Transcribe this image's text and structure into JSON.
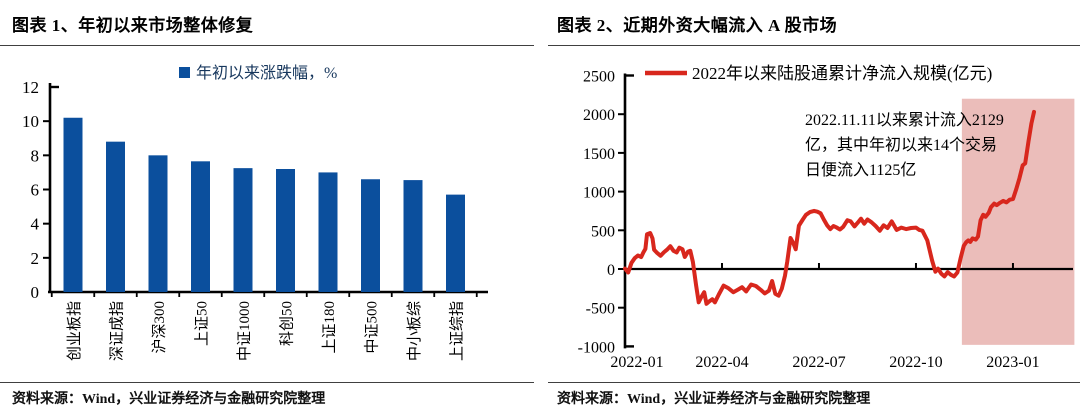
{
  "panels": [
    {
      "title": "图表 1、年初以来市场整体修复",
      "source": "资料来源：Wind，兴业证券经济与金融研究院整理"
    },
    {
      "title": "图表 2、近期外资大幅流入 A 股市场",
      "source": "资料来源：Wind，兴业证券经济与金融研究院整理"
    }
  ],
  "chart_data": [
    {
      "type": "bar",
      "title": "图表 1、年初以来市场整体修复",
      "legend": "年初以来涨跌幅，%",
      "categories": [
        "创业板指",
        "深证成指",
        "沪深300",
        "上证50",
        "中证1000",
        "科创50",
        "上证180",
        "中证500",
        "中小板综",
        "上证综指"
      ],
      "values": [
        10.2,
        8.8,
        8.0,
        7.65,
        7.25,
        7.2,
        7.0,
        6.6,
        6.55,
        5.7
      ],
      "ylim": [
        0,
        12
      ],
      "yticks": [
        0,
        2,
        4,
        6,
        8,
        10,
        12
      ],
      "grid": false,
      "legend_position": "top",
      "bar_color": "#0B4F9D",
      "legend_text_color": "#17375D",
      "axis_color": "#000000"
    },
    {
      "type": "line",
      "title": "图表 2、近期外资大幅流入 A 股市场",
      "legend": "2022年以来陆股通累计净流入规模(亿元)",
      "line_color": "#D8271D",
      "axis_color": "#000000",
      "ylim": [
        -1000,
        2500
      ],
      "yticks": [
        -1000,
        -500,
        0,
        500,
        1000,
        1500,
        2000,
        2500
      ],
      "xlim_months": [
        0,
        13.9
      ],
      "xticks": [
        {
          "month": 0,
          "label": "2022-01"
        },
        {
          "month": 3,
          "label": "2022-04"
        },
        {
          "month": 6,
          "label": "2022-07"
        },
        {
          "month": 9,
          "label": "2022-10"
        },
        {
          "month": 12,
          "label": "2023-01"
        }
      ],
      "highlight": {
        "from_month": 10.42,
        "to_month": 13.9,
        "value_top": 2200,
        "value_bottom": -980,
        "color": "#EBBDBA"
      },
      "annotation": {
        "lines": [
          "2022.11.11以来累计流入2129",
          "亿，其中年初以来14个交易",
          "日便流入1125亿"
        ],
        "color": "#000000"
      },
      "points": [
        [
          0,
          5
        ],
        [
          0.1,
          -45
        ],
        [
          0.2,
          80
        ],
        [
          0.3,
          140
        ],
        [
          0.4,
          175
        ],
        [
          0.5,
          155
        ],
        [
          0.57,
          215
        ],
        [
          0.63,
          260
        ],
        [
          0.68,
          450
        ],
        [
          0.78,
          465
        ],
        [
          0.85,
          395
        ],
        [
          0.9,
          250
        ],
        [
          1,
          205
        ],
        [
          1.1,
          170
        ],
        [
          1.2,
          215
        ],
        [
          1.3,
          250
        ],
        [
          1.4,
          295
        ],
        [
          1.5,
          235
        ],
        [
          1.6,
          215
        ],
        [
          1.68,
          275
        ],
        [
          1.78,
          255
        ],
        [
          1.85,
          155
        ],
        [
          1.95,
          225
        ],
        [
          2.02,
          235
        ],
        [
          2.1,
          90
        ],
        [
          2.2,
          -210
        ],
        [
          2.28,
          -430
        ],
        [
          2.35,
          -370
        ],
        [
          2.45,
          -300
        ],
        [
          2.52,
          -450
        ],
        [
          2.6,
          -420
        ],
        [
          2.7,
          -390
        ],
        [
          2.78,
          -430
        ],
        [
          2.9,
          -330
        ],
        [
          3.05,
          -215
        ],
        [
          3.2,
          -250
        ],
        [
          3.35,
          -300
        ],
        [
          3.5,
          -265
        ],
        [
          3.62,
          -235
        ],
        [
          3.75,
          -290
        ],
        [
          3.9,
          -200
        ],
        [
          4.05,
          -220
        ],
        [
          4.2,
          -270
        ],
        [
          4.32,
          -315
        ],
        [
          4.45,
          -280
        ],
        [
          4.55,
          -155
        ],
        [
          4.65,
          -320
        ],
        [
          4.75,
          -345
        ],
        [
          4.85,
          -255
        ],
        [
          4.95,
          -85
        ],
        [
          5.02,
          100
        ],
        [
          5.12,
          400
        ],
        [
          5.2,
          340
        ],
        [
          5.28,
          255
        ],
        [
          5.38,
          560
        ],
        [
          5.5,
          640
        ],
        [
          5.6,
          700
        ],
        [
          5.72,
          735
        ],
        [
          5.85,
          750
        ],
        [
          5.95,
          740
        ],
        [
          6.05,
          720
        ],
        [
          6.15,
          640
        ],
        [
          6.25,
          565
        ],
        [
          6.35,
          515
        ],
        [
          6.45,
          555
        ],
        [
          6.55,
          535
        ],
        [
          6.65,
          510
        ],
        [
          6.75,
          545
        ],
        [
          6.88,
          630
        ],
        [
          6.98,
          615
        ],
        [
          7.1,
          550
        ],
        [
          7.2,
          600
        ],
        [
          7.3,
          650
        ],
        [
          7.4,
          585
        ],
        [
          7.5,
          640
        ],
        [
          7.62,
          605
        ],
        [
          7.75,
          555
        ],
        [
          7.88,
          495
        ],
        [
          8,
          565
        ],
        [
          8.12,
          530
        ],
        [
          8.25,
          615
        ],
        [
          8.4,
          505
        ],
        [
          8.55,
          535
        ],
        [
          8.7,
          515
        ],
        [
          8.85,
          530
        ],
        [
          9,
          535
        ],
        [
          9.1,
          505
        ],
        [
          9.2,
          495
        ],
        [
          9.35,
          370
        ],
        [
          9.5,
          110
        ],
        [
          9.6,
          -35
        ],
        [
          9.68,
          5
        ],
        [
          9.78,
          -60
        ],
        [
          9.88,
          -95
        ],
        [
          9.98,
          -40
        ],
        [
          10.08,
          -75
        ],
        [
          10.18,
          -95
        ],
        [
          10.28,
          -45
        ],
        [
          10.38,
          140
        ],
        [
          10.48,
          300
        ],
        [
          10.55,
          345
        ],
        [
          10.62,
          370
        ],
        [
          10.68,
          350
        ],
        [
          10.75,
          395
        ],
        [
          10.85,
          380
        ],
        [
          10.92,
          420
        ],
        [
          11,
          630
        ],
        [
          11.08,
          700
        ],
        [
          11.15,
          675
        ],
        [
          11.25,
          725
        ],
        [
          11.32,
          800
        ],
        [
          11.42,
          845
        ],
        [
          11.5,
          825
        ],
        [
          11.6,
          855
        ],
        [
          11.7,
          880
        ],
        [
          11.8,
          860
        ],
        [
          11.9,
          895
        ],
        [
          12,
          905
        ],
        [
          12.1,
          1030
        ],
        [
          12.2,
          1170
        ],
        [
          12.3,
          1340
        ],
        [
          12.38,
          1365
        ],
        [
          12.48,
          1650
        ],
        [
          12.57,
          1880
        ],
        [
          12.65,
          2030
        ]
      ]
    }
  ]
}
